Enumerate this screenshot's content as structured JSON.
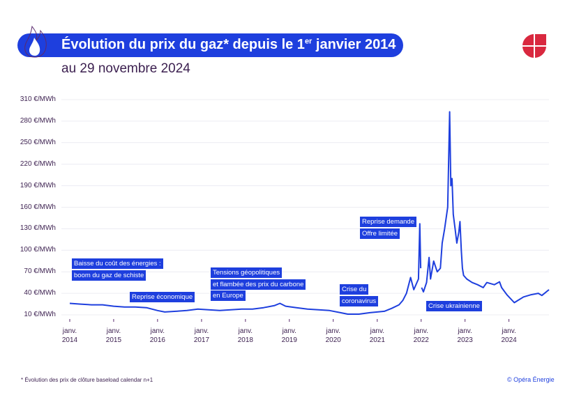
{
  "header": {
    "title_main": "Évolution du prix du gaz* depuis le 1",
    "title_sup": "er",
    "title_end": " janvier 2014",
    "subtitle": "au 29 novembre 2024"
  },
  "colors": {
    "accent": "#1e3fde",
    "text": "#3b1f4f",
    "logo": "#d9283f",
    "grid": "#ececf2"
  },
  "icons": {
    "title": "flame-icon",
    "logo": "opera-energie-logo"
  },
  "footnote": "* Évolution des prix de clôture baseload calendar n+1",
  "copyright": "© Opéra Énergie",
  "chart_data": {
    "type": "line",
    "title": "Évolution du prix du gaz* depuis le 1er janvier 2014",
    "ylabel": "",
    "xlabel": "",
    "ylim": [
      10,
      310
    ],
    "xlim": [
      "2014-01-01",
      "2024-11-29"
    ],
    "grid": "horizontal",
    "yticks": [
      "10 €/MWh",
      "40 €/MWh",
      "70 €/MWh",
      "100 €/MWh",
      "130 €/MWh",
      "160 €/MWh",
      "190 €/MWh",
      "220 €/MWh",
      "250 €/MWh",
      "280 €/MWh",
      "310 €/MWh"
    ],
    "ytick_values": [
      10,
      40,
      70,
      100,
      130,
      160,
      190,
      220,
      250,
      280,
      310
    ],
    "xticks": [
      {
        "line1": "janv.",
        "line2": "2014",
        "date": "2014-01-01"
      },
      {
        "line1": "janv.",
        "line2": "2015",
        "date": "2015-01-01"
      },
      {
        "line1": "janv.",
        "line2": "2016",
        "date": "2016-01-01"
      },
      {
        "line1": "janv.",
        "line2": "2017",
        "date": "2017-01-01"
      },
      {
        "line1": "janv.",
        "line2": "2018",
        "date": "2018-01-01"
      },
      {
        "line1": "janv.",
        "line2": "2019",
        "date": "2019-01-01"
      },
      {
        "line1": "janv.",
        "line2": "2020",
        "date": "2020-01-01"
      },
      {
        "line1": "janv.",
        "line2": "2021",
        "date": "2021-01-01"
      },
      {
        "line1": "janv.",
        "line2": "2022",
        "date": "2022-01-01"
      },
      {
        "line1": "janv.",
        "line2": "2023",
        "date": "2023-01-01"
      },
      {
        "line1": "janv.",
        "line2": "2024",
        "date": "2024-01-01"
      }
    ],
    "unit": "€/MWh",
    "series": [
      {
        "segments": [
          [
            [
              "2014-01-01",
              26
            ],
            [
              "2014-04-01",
              25
            ],
            [
              "2014-07-01",
              24
            ],
            [
              "2014-10-01",
              24
            ],
            [
              "2015-01-01",
              22
            ],
            [
              "2015-04-01",
              21
            ],
            [
              "2015-07-01",
              21
            ],
            [
              "2015-10-01",
              20
            ],
            [
              "2016-01-01",
              16
            ],
            [
              "2016-03-01",
              14
            ],
            [
              "2016-06-01",
              15
            ],
            [
              "2016-09-01",
              16
            ],
            [
              "2016-12-01",
              18
            ],
            [
              "2017-03-01",
              17
            ],
            [
              "2017-06-01",
              16
            ],
            [
              "2017-09-01",
              17
            ],
            [
              "2017-12-01",
              18
            ],
            [
              "2018-03-01",
              18
            ],
            [
              "2018-06-01",
              20
            ],
            [
              "2018-09-01",
              23
            ],
            [
              "2018-10-15",
              26
            ],
            [
              "2018-12-01",
              22
            ],
            [
              "2019-03-01",
              20
            ],
            [
              "2019-06-01",
              18
            ],
            [
              "2019-09-01",
              17
            ],
            [
              "2019-12-01",
              16
            ],
            [
              "2020-03-01",
              13
            ],
            [
              "2020-05-01",
              11
            ],
            [
              "2020-08-01",
              11
            ],
            [
              "2020-11-01",
              13
            ],
            [
              "2021-01-01",
              14
            ],
            [
              "2021-03-01",
              15
            ],
            [
              "2021-05-01",
              19
            ],
            [
              "2021-07-01",
              24
            ],
            [
              "2021-08-01",
              30
            ],
            [
              "2021-09-01",
              40
            ],
            [
              "2021-10-05",
              62
            ],
            [
              "2021-11-01",
              45
            ],
            [
              "2021-12-10",
              60
            ],
            [
              "2021-12-21",
              137
            ],
            [
              "2021-12-28",
              75
            ]
          ],
          [
            [
              "2022-01-05",
              48
            ],
            [
              "2022-01-20",
              42
            ],
            [
              "2022-02-15",
              55
            ],
            [
              "2022-03-08",
              90
            ],
            [
              "2022-03-20",
              60
            ],
            [
              "2022-04-15",
              85
            ],
            [
              "2022-05-15",
              70
            ],
            [
              "2022-06-10",
              75
            ],
            [
              "2022-06-25",
              110
            ],
            [
              "2022-07-15",
              130
            ],
            [
              "2022-08-10",
              160
            ],
            [
              "2022-08-26",
              293
            ],
            [
              "2022-09-05",
              190
            ],
            [
              "2022-09-15",
              200
            ],
            [
              "2022-09-25",
              150
            ],
            [
              "2022-10-10",
              130
            ],
            [
              "2022-10-25",
              110
            ],
            [
              "2022-11-10",
              125
            ],
            [
              "2022-11-20",
              140
            ],
            [
              "2022-12-01",
              100
            ],
            [
              "2022-12-10",
              75
            ],
            [
              "2022-12-20",
              65
            ],
            [
              "2023-01-15",
              60
            ],
            [
              "2023-03-01",
              55
            ],
            [
              "2023-04-15",
              52
            ],
            [
              "2023-06-01",
              48
            ],
            [
              "2023-07-01",
              55
            ],
            [
              "2023-09-01",
              52
            ],
            [
              "2023-10-15",
              56
            ],
            [
              "2023-11-01",
              48
            ],
            [
              "2023-12-15",
              38
            ],
            [
              "2024-02-15",
              27
            ],
            [
              "2024-03-15",
              30
            ],
            [
              "2024-05-01",
              35
            ],
            [
              "2024-07-01",
              38
            ],
            [
              "2024-09-01",
              40
            ],
            [
              "2024-10-01",
              37
            ],
            [
              "2024-11-29",
              45
            ]
          ]
        ]
      }
    ],
    "annotations": [
      {
        "lines": [
          "Baisse du coût des énergies :",
          "boom du gaz de schiste"
        ]
      },
      {
        "lines": [
          "Reprise économique"
        ]
      },
      {
        "lines": [
          "Tensions géopolitiques",
          "et flambée des prix du carbone",
          "en Europe"
        ]
      },
      {
        "lines": [
          "Crise du",
          "coronavirus"
        ]
      },
      {
        "lines": [
          "Reprise demande",
          "Offre limitée"
        ]
      },
      {
        "lines": [
          "Crise ukrainienne"
        ]
      }
    ]
  }
}
